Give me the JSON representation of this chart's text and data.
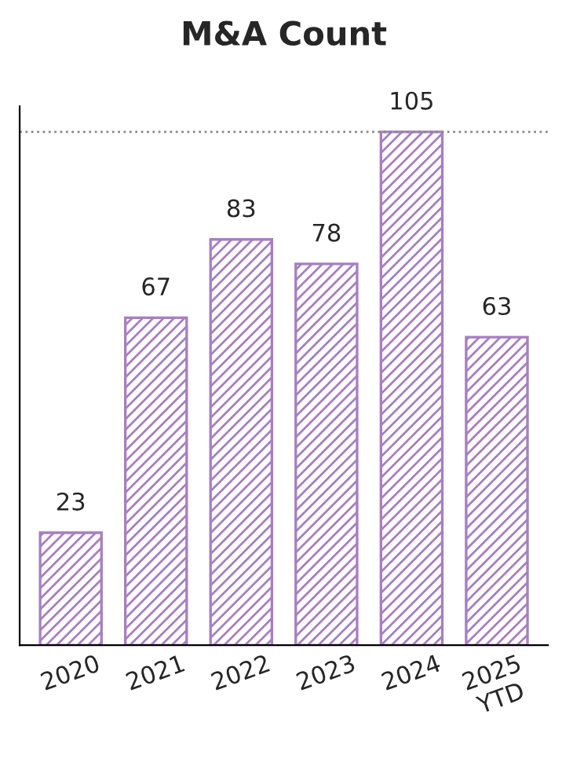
{
  "chart_data": {
    "type": "bar",
    "title": "M&A Count",
    "categories": [
      "2020",
      "2021",
      "2022",
      "2023",
      "2024",
      "2025\nYTD"
    ],
    "values": [
      23,
      67,
      83,
      78,
      105,
      63
    ],
    "color": "#a77fc0",
    "data_labels": true,
    "ref_lines": [
      {
        "axis": "y",
        "value": 105,
        "color": "#888888",
        "line_style": "dotted"
      }
    ],
    "grid": false,
    "legend": false
  }
}
